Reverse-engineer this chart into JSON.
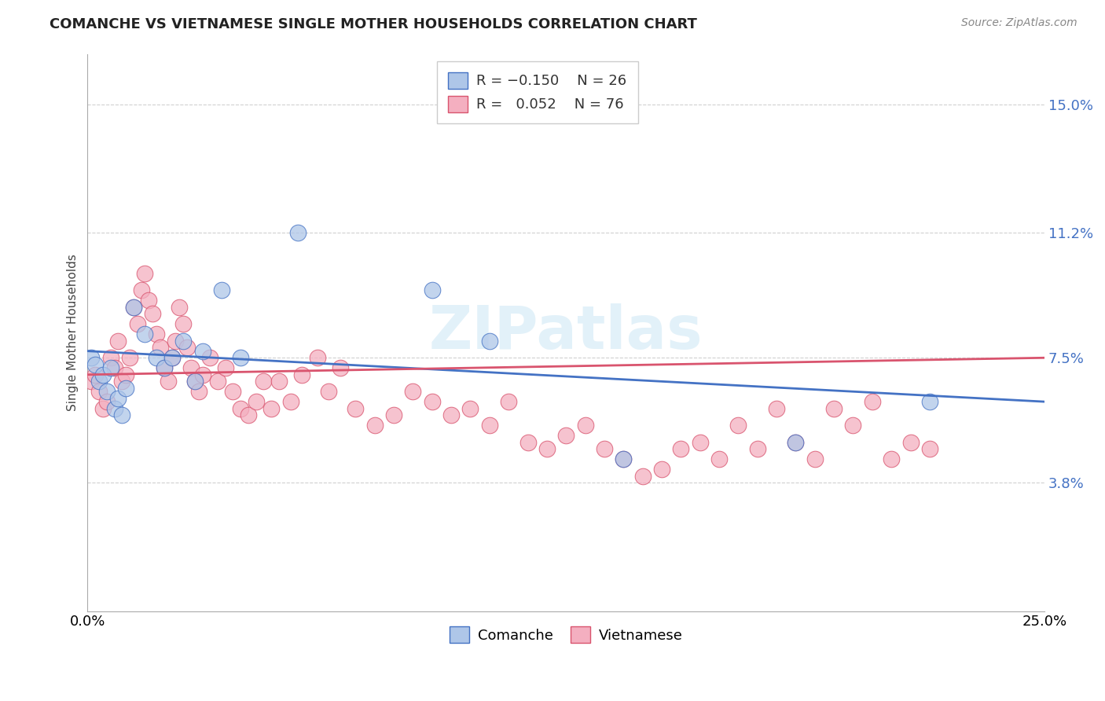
{
  "title": "COMANCHE VS VIETNAMESE SINGLE MOTHER HOUSEHOLDS CORRELATION CHART",
  "source": "Source: ZipAtlas.com",
  "ylabel": "Single Mother Households",
  "xlim": [
    0.0,
    0.25
  ],
  "ylim": [
    0.0,
    0.165
  ],
  "yticks": [
    0.038,
    0.075,
    0.112,
    0.15
  ],
  "ytick_labels": [
    "3.8%",
    "7.5%",
    "11.2%",
    "15.0%"
  ],
  "xticks": [
    0.0,
    0.05,
    0.1,
    0.15,
    0.2,
    0.25
  ],
  "xtick_labels": [
    "0.0%",
    "",
    "",
    "",
    "",
    "25.0%"
  ],
  "comanche_color": "#aec6e8",
  "vietnamese_color": "#f4afc0",
  "trend_comanche_color": "#4472c4",
  "trend_vietnamese_color": "#d9546e",
  "watermark": "ZIPatlas",
  "comanche_x": [
    0.001,
    0.002,
    0.003,
    0.004,
    0.005,
    0.006,
    0.007,
    0.008,
    0.009,
    0.01,
    0.012,
    0.015,
    0.018,
    0.02,
    0.022,
    0.025,
    0.028,
    0.03,
    0.035,
    0.04,
    0.055,
    0.09,
    0.105,
    0.14,
    0.185,
    0.22
  ],
  "comanche_y": [
    0.075,
    0.073,
    0.068,
    0.07,
    0.065,
    0.072,
    0.06,
    0.063,
    0.058,
    0.066,
    0.09,
    0.082,
    0.075,
    0.072,
    0.075,
    0.08,
    0.068,
    0.077,
    0.095,
    0.075,
    0.112,
    0.095,
    0.08,
    0.045,
    0.05,
    0.062
  ],
  "vietnamese_x": [
    0.001,
    0.002,
    0.003,
    0.004,
    0.005,
    0.006,
    0.007,
    0.008,
    0.009,
    0.01,
    0.011,
    0.012,
    0.013,
    0.014,
    0.015,
    0.016,
    0.017,
    0.018,
    0.019,
    0.02,
    0.021,
    0.022,
    0.023,
    0.024,
    0.025,
    0.026,
    0.027,
    0.028,
    0.029,
    0.03,
    0.032,
    0.034,
    0.036,
    0.038,
    0.04,
    0.042,
    0.044,
    0.046,
    0.048,
    0.05,
    0.053,
    0.056,
    0.06,
    0.063,
    0.066,
    0.07,
    0.075,
    0.08,
    0.085,
    0.09,
    0.095,
    0.1,
    0.105,
    0.11,
    0.115,
    0.12,
    0.125,
    0.13,
    0.135,
    0.14,
    0.145,
    0.15,
    0.155,
    0.16,
    0.165,
    0.17,
    0.175,
    0.18,
    0.185,
    0.19,
    0.195,
    0.2,
    0.205,
    0.21,
    0.215,
    0.22
  ],
  "vietnamese_y": [
    0.068,
    0.07,
    0.065,
    0.06,
    0.062,
    0.075,
    0.072,
    0.08,
    0.068,
    0.07,
    0.075,
    0.09,
    0.085,
    0.095,
    0.1,
    0.092,
    0.088,
    0.082,
    0.078,
    0.072,
    0.068,
    0.075,
    0.08,
    0.09,
    0.085,
    0.078,
    0.072,
    0.068,
    0.065,
    0.07,
    0.075,
    0.068,
    0.072,
    0.065,
    0.06,
    0.058,
    0.062,
    0.068,
    0.06,
    0.068,
    0.062,
    0.07,
    0.075,
    0.065,
    0.072,
    0.06,
    0.055,
    0.058,
    0.065,
    0.062,
    0.058,
    0.06,
    0.055,
    0.062,
    0.05,
    0.048,
    0.052,
    0.055,
    0.048,
    0.045,
    0.04,
    0.042,
    0.048,
    0.05,
    0.045,
    0.055,
    0.048,
    0.06,
    0.05,
    0.045,
    0.06,
    0.055,
    0.062,
    0.045,
    0.05,
    0.048
  ]
}
